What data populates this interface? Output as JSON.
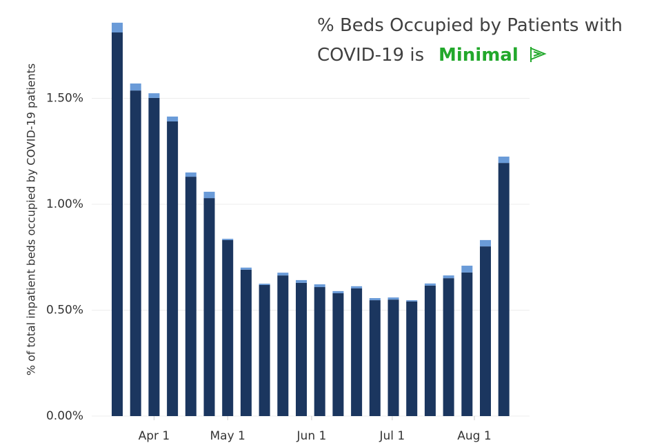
{
  "chart_data": {
    "type": "stacked_bar",
    "title_line1": "% Beds Occupied by Patients with",
    "title_line2": "COVID-19 is",
    "status": "Minimal",
    "y_label": "% of total inpatient beds occupied by COVID-19 patients",
    "categories": [
      null,
      null,
      null,
      null,
      null,
      null,
      null,
      null,
      null,
      null,
      null,
      null,
      null,
      null,
      null,
      null,
      null,
      null,
      null,
      null,
      null,
      null
    ],
    "series": [
      {
        "color": "#1b365f",
        "values": [
          1.811,
          1.537,
          1.502,
          1.391,
          1.13,
          1.029,
          0.831,
          0.691,
          0.619,
          0.664,
          0.629,
          0.609,
          0.58,
          0.603,
          0.547,
          0.55,
          0.541,
          0.616,
          0.651,
          0.678,
          0.801,
          1.195
        ]
      },
      {
        "color": "#6a9bd8",
        "values": [
          0.046,
          0.033,
          0.022,
          0.023,
          0.02,
          0.03,
          0.006,
          0.01,
          0.006,
          0.013,
          0.013,
          0.013,
          0.01,
          0.01,
          0.01,
          0.01,
          0.006,
          0.01,
          0.013,
          0.032,
          0.03,
          0.03
        ]
      }
    ],
    "ylim": [
      0,
      1.95
    ],
    "yticks": [
      {
        "value": 0,
        "label": "0.00%"
      },
      {
        "value": 0.5,
        "label": "0.50%"
      },
      {
        "value": 1,
        "label": "1.00%"
      },
      {
        "value": 1.5,
        "label": "1.50%"
      }
    ],
    "xticks": [
      {
        "value": 2,
        "label": "Apr 1"
      },
      {
        "value": 6,
        "label": "May 1"
      },
      {
        "value": 10.56,
        "label": "Jun 1"
      },
      {
        "value": 14.94,
        "label": "Jul 1"
      },
      {
        "value": 19.4,
        "label": "Aug 1"
      }
    ],
    "grid": true
  }
}
